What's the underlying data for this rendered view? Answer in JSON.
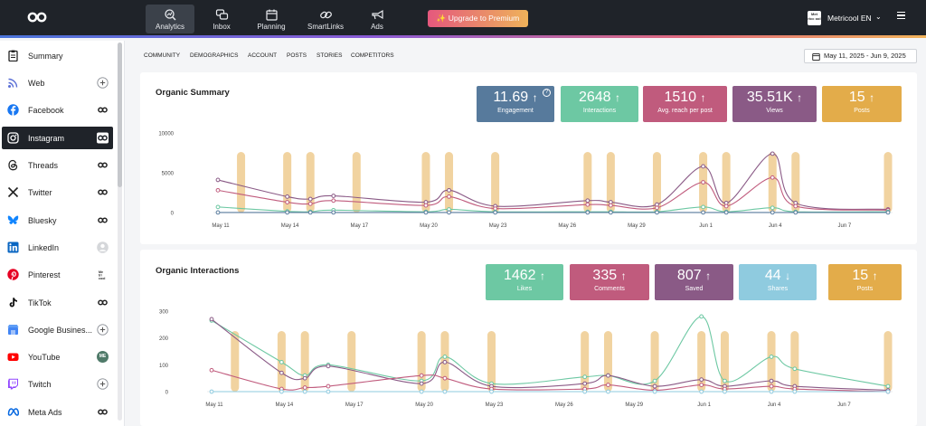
{
  "topnav": {
    "items": [
      {
        "label": "Analytics",
        "icon": "analytics-icon"
      },
      {
        "label": "Inbox",
        "icon": "inbox-icon"
      },
      {
        "label": "Planning",
        "icon": "calendar-icon"
      },
      {
        "label": "SmartLinks",
        "icon": "link-icon"
      },
      {
        "label": "Ads",
        "icon": "megaphone-icon"
      }
    ],
    "upgrade_label": "✨ Upgrade to Premium",
    "account_name": "Metricool EN",
    "avatar_text": "Met ricc ool"
  },
  "sidebar": {
    "items": [
      {
        "label": "Summary",
        "icon": "clipboard-icon",
        "color": "#222222",
        "action": ""
      },
      {
        "label": "Web",
        "icon": "rss-icon",
        "color": "#5a6fd6",
        "action": "add"
      },
      {
        "label": "Facebook",
        "icon": "facebook-icon",
        "color": "#1877f2",
        "action": "connected"
      },
      {
        "label": "Instagram",
        "icon": "instagram-icon",
        "color": "#ffffff",
        "action": "connected"
      },
      {
        "label": "Threads",
        "icon": "threads-icon",
        "color": "#222222",
        "action": "connected"
      },
      {
        "label": "Twitter",
        "icon": "x-icon",
        "color": "#222222",
        "action": "connected"
      },
      {
        "label": "Bluesky",
        "icon": "bluesky-icon",
        "color": "#1185fe",
        "action": "connected"
      },
      {
        "label": "LinkedIn",
        "icon": "linkedin-icon",
        "color": "#0a66c2",
        "action": "avatar"
      },
      {
        "label": "Pinterest",
        "icon": "pinterest-icon",
        "color": "#e60023",
        "action": "brand"
      },
      {
        "label": "TikTok",
        "icon": "tiktok-icon",
        "color": "#111111",
        "action": "connected"
      },
      {
        "label": "Google Busines...",
        "icon": "google-business-icon",
        "color": "#4285f4",
        "action": "add"
      },
      {
        "label": "YouTube",
        "icon": "youtube-icon",
        "color": "#ff0000",
        "action": "me"
      },
      {
        "label": "Twitch",
        "icon": "twitch-icon",
        "color": "#9146ff",
        "action": "add"
      },
      {
        "label": "Meta Ads",
        "icon": "meta-icon",
        "color": "#0668e1",
        "action": "connected"
      }
    ],
    "active_index": 3,
    "me_badge": "ME"
  },
  "subnav": {
    "tabs": [
      "COMMUNITY",
      "DEMOGRAPHICS",
      "ACCOUNT",
      "POSTS",
      "STORIES",
      "COMPETITORS"
    ],
    "date_range": "May 11, 2025 - Jun 9, 2025"
  },
  "colors": {
    "blue": "#577a9c",
    "green": "#6dc8a3",
    "pink": "#c05b7d",
    "purple": "#8a5a86",
    "orange": "#e3ac4a",
    "light_blue": "#8fcbdf",
    "bar": "#f1d3a0"
  },
  "summary": {
    "title": "Organic Summary",
    "stats": [
      {
        "value": "11.69",
        "arrow": "↑",
        "label": "Engagement",
        "color": "#577a9c",
        "help": "?"
      },
      {
        "value": "2648",
        "arrow": "↑",
        "label": "Interactions",
        "color": "#6dc8a3"
      },
      {
        "value": "1510",
        "arrow": "↑",
        "label": "Avg. reach per post",
        "color": "#c05b7d"
      },
      {
        "value": "35.51K",
        "arrow": "↑",
        "label": "Views",
        "color": "#8a5a86"
      },
      {
        "value": "15",
        "arrow": "↑",
        "label": "Posts",
        "color": "#e3ac4a"
      }
    ]
  },
  "interactions": {
    "title": "Organic Interactions",
    "stats": [
      {
        "value": "1462",
        "arrow": "↑",
        "label": "Likes",
        "color": "#6dc8a3"
      },
      {
        "value": "335",
        "arrow": "↑",
        "label": "Comments",
        "color": "#c05b7d"
      },
      {
        "value": "807",
        "arrow": "↑",
        "label": "Saved",
        "color": "#8a5a86"
      },
      {
        "value": "44",
        "arrow": "↓",
        "label": "Shares",
        "color": "#8fcbdf"
      },
      {
        "value": "15",
        "arrow": "↑",
        "label": "Posts",
        "color": "#e3ac4a"
      }
    ]
  },
  "chart_data": [
    {
      "type": "line",
      "x": [
        "May 11",
        "May 12",
        "May 13",
        "May 14",
        "May 15",
        "May 16",
        "May 17",
        "May 18",
        "May 19",
        "May 20",
        "May 21",
        "May 22",
        "May 23",
        "May 24",
        "May 25",
        "May 26",
        "May 27",
        "May 28",
        "May 29",
        "May 30",
        "May 31",
        "Jun 1",
        "Jun 2",
        "Jun 3",
        "Jun 4",
        "Jun 5",
        "Jun 6",
        "Jun 7",
        "Jun 8",
        "Jun 9"
      ],
      "tick_labels": [
        "May 11",
        "May 14",
        "May 17",
        "May 20",
        "May 23",
        "May 26",
        "May 29",
        "Jun 1",
        "Jun 4",
        "Jun 7"
      ],
      "ylim": [
        0,
        10000
      ],
      "yticks": [
        0,
        5000,
        10000
      ],
      "post_days": [
        "May 12",
        "May 14",
        "May 15",
        "May 17",
        "May 20",
        "May 21",
        "May 23",
        "May 27",
        "May 28",
        "May 30",
        "Jun 1",
        "Jun 2",
        "Jun 4",
        "Jun 5",
        "Jun 9"
      ],
      "series": [
        {
          "color": "#8a5a86",
          "values": [
            4100,
            null,
            null,
            2000,
            1700,
            2100,
            null,
            null,
            null,
            1300,
            2800,
            null,
            800,
            null,
            null,
            null,
            1500,
            1300,
            null,
            1000,
            null,
            5800,
            1200,
            null,
            7400,
            1200,
            null,
            null,
            null,
            400
          ]
        },
        {
          "color": "#c05b7d",
          "values": [
            2800,
            null,
            null,
            1300,
            1100,
            1500,
            null,
            null,
            null,
            900,
            2000,
            null,
            500,
            null,
            null,
            null,
            1000,
            900,
            null,
            600,
            null,
            3800,
            800,
            null,
            4400,
            800,
            null,
            null,
            null,
            300
          ]
        },
        {
          "color": "#6dc8a3",
          "values": [
            700,
            null,
            null,
            150,
            100,
            300,
            null,
            null,
            null,
            100,
            400,
            null,
            100,
            null,
            null,
            null,
            100,
            100,
            null,
            100,
            null,
            700,
            100,
            null,
            600,
            100,
            null,
            null,
            null,
            100
          ]
        },
        {
          "color": "#577a9c",
          "values": [
            10,
            null,
            null,
            10,
            10,
            10,
            null,
            null,
            null,
            10,
            10,
            null,
            10,
            null,
            null,
            null,
            10,
            10,
            null,
            10,
            null,
            10,
            10,
            null,
            10,
            10,
            null,
            null,
            null,
            10
          ]
        }
      ]
    },
    {
      "type": "line",
      "x": [
        "May 11",
        "May 12",
        "May 13",
        "May 14",
        "May 15",
        "May 16",
        "May 17",
        "May 18",
        "May 19",
        "May 20",
        "May 21",
        "May 22",
        "May 23",
        "May 24",
        "May 25",
        "May 26",
        "May 27",
        "May 28",
        "May 29",
        "May 30",
        "May 31",
        "Jun 1",
        "Jun 2",
        "Jun 3",
        "Jun 4",
        "Jun 5",
        "Jun 6",
        "Jun 7",
        "Jun 8",
        "Jun 9"
      ],
      "tick_labels": [
        "May 11",
        "May 14",
        "May 17",
        "May 20",
        "May 23",
        "May 26",
        "May 29",
        "Jun 1",
        "Jun 4",
        "Jun 7"
      ],
      "ylim": [
        0,
        300
      ],
      "yticks": [
        0,
        100,
        200,
        300
      ],
      "post_days": [
        "May 12",
        "May 14",
        "May 15",
        "May 17",
        "May 20",
        "May 21",
        "May 23",
        "May 27",
        "May 28",
        "May 30",
        "Jun 1",
        "Jun 2",
        "Jun 4",
        "Jun 5",
        "Jun 9"
      ],
      "series": [
        {
          "color": "#6dc8a3",
          "values": [
            265,
            null,
            null,
            110,
            60,
            100,
            null,
            null,
            null,
            40,
            130,
            null,
            30,
            null,
            null,
            null,
            55,
            60,
            null,
            40,
            null,
            280,
            40,
            null,
            130,
            85,
            null,
            null,
            null,
            20
          ]
        },
        {
          "color": "#8a5a86",
          "values": [
            270,
            null,
            null,
            70,
            50,
            95,
            null,
            null,
            null,
            30,
            110,
            null,
            20,
            null,
            null,
            null,
            30,
            60,
            null,
            20,
            null,
            45,
            20,
            null,
            40,
            20,
            null,
            null,
            null,
            5
          ]
        },
        {
          "color": "#c05b7d",
          "values": [
            80,
            null,
            null,
            10,
            15,
            20,
            null,
            null,
            null,
            60,
            50,
            null,
            10,
            null,
            null,
            null,
            10,
            25,
            null,
            5,
            null,
            25,
            10,
            null,
            20,
            10,
            null,
            null,
            null,
            0
          ]
        },
        {
          "color": "#8fcbdf",
          "values": [
            0,
            null,
            null,
            0,
            0,
            0,
            null,
            null,
            null,
            0,
            0,
            null,
            0,
            null,
            null,
            null,
            0,
            0,
            null,
            0,
            null,
            0,
            0,
            null,
            0,
            0,
            null,
            null,
            null,
            0
          ]
        }
      ]
    }
  ]
}
